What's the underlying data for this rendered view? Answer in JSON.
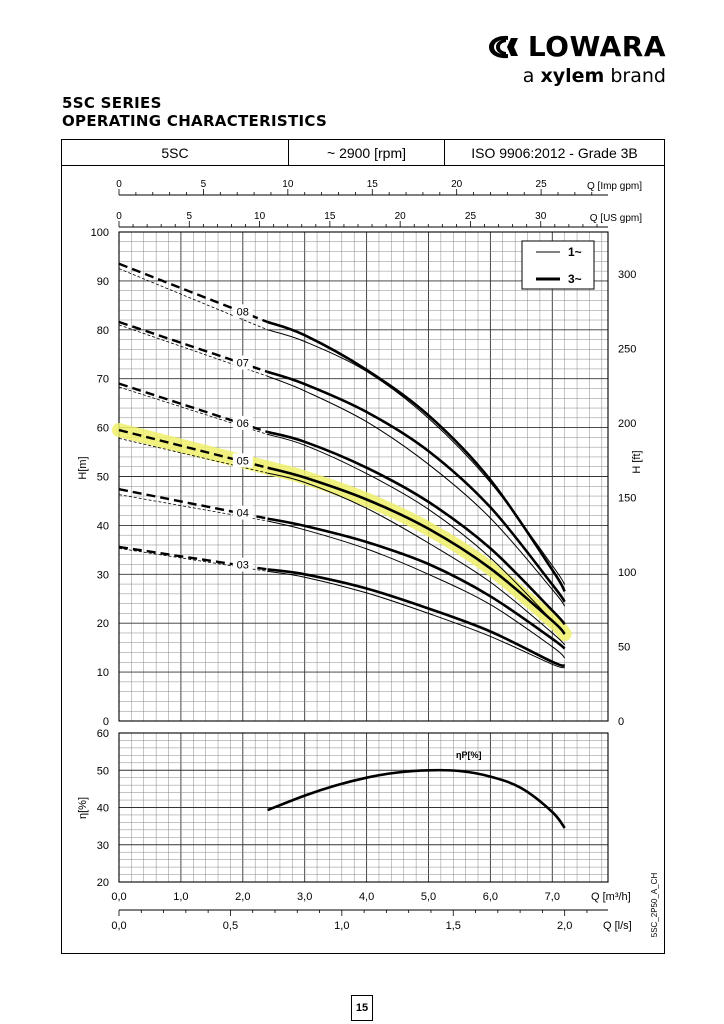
{
  "brand": {
    "name": "LOWARA",
    "tagline_pre": "a",
    "tagline_mid": "xylem",
    "tagline_post": "brand"
  },
  "title": {
    "line1": "5SC SERIES",
    "line2": "OPERATING CHARACTERISTICS"
  },
  "header": {
    "model": "5SC",
    "speed": "~ 2900 [rpm]",
    "standard": "ISO 9906:2012 - Grade 3B"
  },
  "page_number": "15",
  "figure_code": "5SC_2P50_A_CH",
  "colors": {
    "highlight": "#eef06a",
    "curve": "#000000",
    "grid": "#555555"
  },
  "chart_data": [
    {
      "type": "line",
      "xlabel": "Q [m³/h]",
      "ylabel": "H[m]",
      "ylabel_right": "H [ft]",
      "xlim": [
        0,
        7.9
      ],
      "ylim": [
        0,
        100
      ],
      "grid": true,
      "legend_position": "top-right",
      "x_ticks": [
        "0,0",
        "1,0",
        "2,0",
        "3,0",
        "4,0",
        "5,0",
        "6,0",
        "7,0"
      ],
      "y_ticks": [
        "0",
        "10",
        "20",
        "30",
        "40",
        "50",
        "60",
        "70",
        "80",
        "90",
        "100"
      ],
      "right_ticks": [
        "0",
        "50",
        "100",
        "150",
        "200",
        "250",
        "300"
      ],
      "top_axes": [
        {
          "label": "Q [Imp gpm]",
          "ticks": [
            "0",
            "5",
            "10",
            "15",
            "20",
            "25"
          ]
        },
        {
          "label": "Q [US gpm]",
          "ticks": [
            "0",
            "5",
            "10",
            "15",
            "20",
            "25",
            "30"
          ]
        }
      ],
      "bottom_axes": [
        {
          "label": "Q [l/s]",
          "ticks": [
            "0,0",
            "0,5",
            "1,0",
            "1,5",
            "2,0"
          ]
        }
      ],
      "legend": [
        "1~",
        "3~"
      ],
      "series": [
        {
          "name": "08",
          "x": [
            2.4,
            3.0,
            4.0,
            5.0,
            6.0,
            7.0,
            7.2
          ],
          "y_1ph": [
            80.0,
            77.6,
            71.5,
            61.9,
            48.8,
            31.8,
            27.9
          ],
          "y_3ph": [
            81.6,
            78.9,
            71.8,
            62.5,
            49.3,
            30.9,
            26.5
          ],
          "dashed_x": [
            0,
            2.4
          ],
          "dashed_y_1ph": [
            92.5,
            80.0
          ],
          "dashed_y_3ph": [
            93.5,
            81.6
          ]
        },
        {
          "name": "07",
          "x": [
            2.4,
            3.0,
            4.0,
            5.0,
            6.0,
            7.0,
            7.2
          ],
          "y_1ph": [
            70.5,
            67.5,
            61.2,
            52.5,
            41.5,
            26.9,
            23.5
          ],
          "y_3ph": [
            71.4,
            68.9,
            63.2,
            55.2,
            43.7,
            27.9,
            24.4
          ],
          "dashed_x": [
            0,
            2.4
          ],
          "dashed_y_1ph": [
            81.0,
            70.5
          ],
          "dashed_y_3ph": [
            81.6,
            71.4
          ]
        },
        {
          "name": "06",
          "x": [
            2.4,
            3.0,
            4.0,
            5.0,
            6.0,
            7.0,
            7.2
          ],
          "y_1ph": [
            58.6,
            56.4,
            50.6,
            43.3,
            33.4,
            20.5,
            17.8
          ],
          "y_3ph": [
            59.1,
            57.1,
            51.8,
            44.8,
            35.3,
            22.6,
            19.8
          ],
          "dashed_x": [
            0,
            2.4
          ],
          "dashed_y_1ph": [
            68.3,
            58.6
          ],
          "dashed_y_3ph": [
            69.0,
            59.1
          ]
        },
        {
          "name": "05",
          "x": [
            2.4,
            3.0,
            4.0,
            5.0,
            6.0,
            7.0,
            7.2
          ],
          "y_1ph": [
            50.7,
            48.8,
            43.5,
            36.4,
            28.4,
            18.0,
            15.6
          ],
          "y_3ph": [
            51.8,
            49.8,
            45.3,
            39.3,
            31.2,
            20.5,
            17.8
          ],
          "dashed_x": [
            0,
            2.4
          ],
          "dashed_y_1ph": [
            57.8,
            50.7
          ],
          "dashed_y_3ph": [
            59.5,
            51.8
          ]
        },
        {
          "name": "04",
          "x": [
            2.4,
            3.0,
            4.0,
            5.0,
            6.0,
            7.0,
            7.2
          ],
          "y_1ph": [
            40.9,
            39.1,
            35.2,
            30.0,
            23.8,
            15.2,
            12.9
          ],
          "y_3ph": [
            41.4,
            39.9,
            36.6,
            32.1,
            25.5,
            16.8,
            14.8
          ],
          "dashed_x": [
            0,
            2.4
          ],
          "dashed_y_1ph": [
            46.3,
            40.9
          ],
          "dashed_y_3ph": [
            47.4,
            41.4
          ]
        },
        {
          "name": "03",
          "x": [
            2.4,
            3.0,
            4.0,
            5.0,
            6.0,
            7.0,
            7.2
          ],
          "y_1ph": [
            30.6,
            29.4,
            26.2,
            22.0,
            17.3,
            11.6,
            10.9
          ],
          "y_3ph": [
            31.0,
            30.0,
            27.1,
            23.0,
            18.3,
            12.1,
            11.3
          ],
          "dashed_x": [
            0,
            2.4
          ],
          "dashed_y_1ph": [
            35.3,
            30.6
          ],
          "dashed_y_3ph": [
            35.6,
            31.0
          ]
        }
      ],
      "highlighted_series": "05"
    },
    {
      "type": "line",
      "xlabel": "Q [m³/h]",
      "ylabel": "η[%]",
      "ylim": [
        20,
        60
      ],
      "xlim": [
        0,
        7.9
      ],
      "y_ticks": [
        "20",
        "30",
        "40",
        "50",
        "60"
      ],
      "annotation": "ηP[%]",
      "series": [
        {
          "name": "ηP[%]",
          "x": [
            2.4,
            3.0,
            3.5,
            4.0,
            4.5,
            5.0,
            5.5,
            6.0,
            6.5,
            7.0,
            7.2
          ],
          "y": [
            39.3,
            43.2,
            45.9,
            48.0,
            49.4,
            50.0,
            49.8,
            48.3,
            45.2,
            38.8,
            34.5
          ]
        }
      ]
    }
  ]
}
